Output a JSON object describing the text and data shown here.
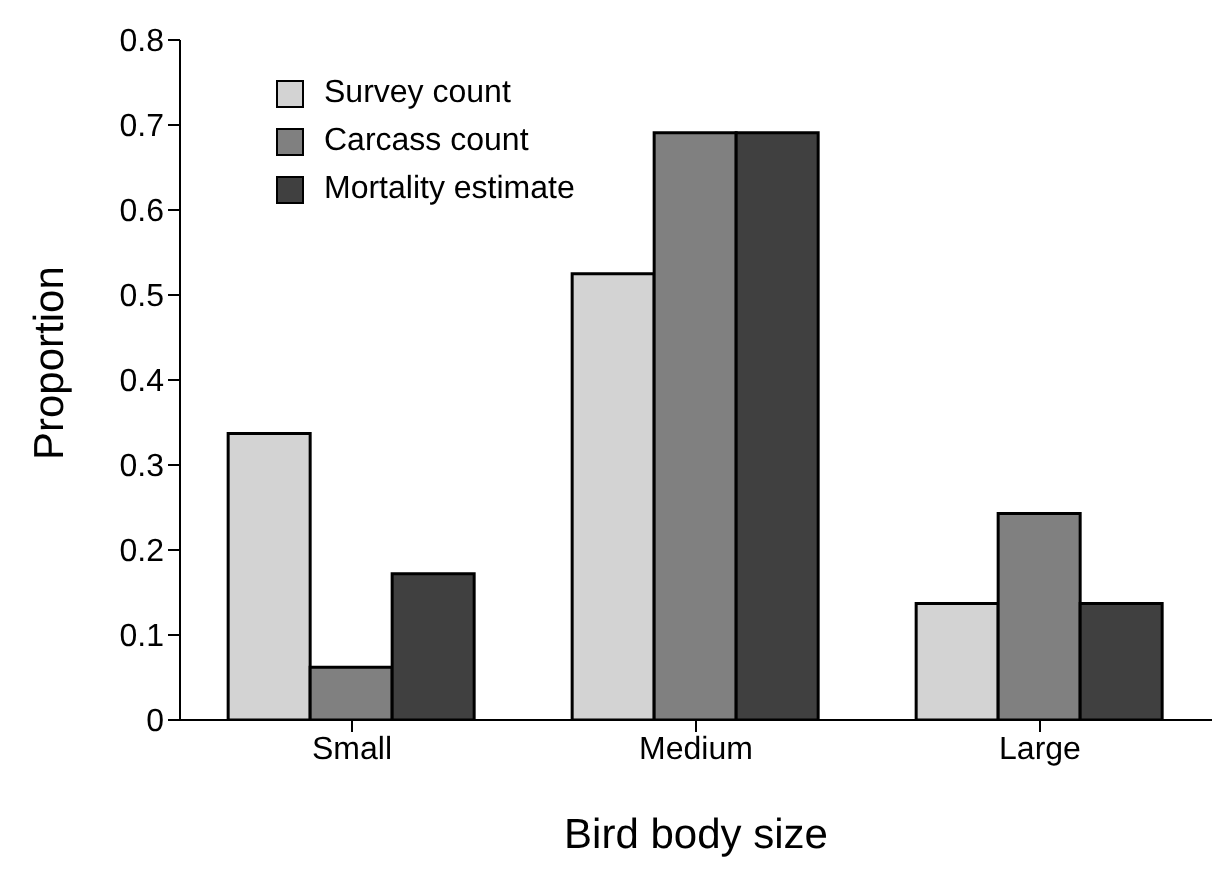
{
  "chart_data": {
    "type": "bar",
    "xlabel": "Bird body size",
    "ylabel": "Proportion",
    "categories": [
      "Small",
      "Medium",
      "Large"
    ],
    "series": [
      {
        "name": "Survey count",
        "color": "#d3d3d3",
        "values": [
          0.337,
          0.525,
          0.137
        ]
      },
      {
        "name": "Carcass count",
        "color": "#808080",
        "values": [
          0.062,
          0.691,
          0.243
        ]
      },
      {
        "name": "Mortality estimate",
        "color": "#404040",
        "values": [
          0.172,
          0.691,
          0.137
        ]
      }
    ],
    "ylim": [
      0,
      0.8
    ],
    "yticks": [
      0,
      0.1,
      0.2,
      0.3,
      0.4,
      0.5,
      0.6,
      0.7,
      0.8
    ],
    "grid": false,
    "legend": "top left"
  }
}
